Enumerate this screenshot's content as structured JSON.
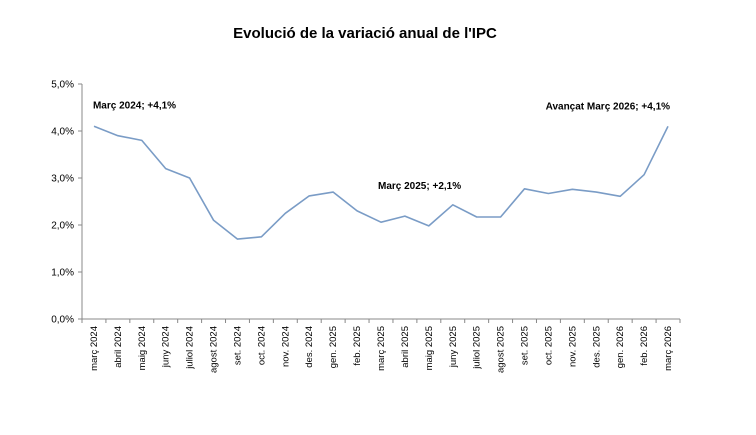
{
  "chart_data": {
    "type": "line",
    "title": "Evolució de la variació anual de l'IPC",
    "xlabel": "",
    "ylabel": "",
    "ylim": [
      0,
      5
    ],
    "yticks": [
      "0,0%",
      "1,0%",
      "2,0%",
      "3,0%",
      "4,0%",
      "5,0%"
    ],
    "grid": false,
    "legend": "none",
    "line_color": "#7a9cc6",
    "categories": [
      "març 2024",
      "abril 2024",
      "maig 2024",
      "juny 2024",
      "juliol 2024",
      "agost 2024",
      "set. 2024",
      "oct. 2024",
      "nov. 2024",
      "des. 2024",
      "gen. 2025",
      "feb. 2025",
      "març 2025",
      "abril 2025",
      "maig 2025",
      "juny 2025",
      "juliol 2025",
      "agost 2025",
      "set. 2025",
      "oct. 2025",
      "nov. 2025",
      "des. 2025",
      "gen. 2026",
      "feb. 2026",
      "març 2026"
    ],
    "series": [
      {
        "values": [
          4.1,
          3.9,
          3.8,
          3.2,
          3.0,
          2.1,
          1.7,
          1.75,
          2.25,
          2.62,
          2.7,
          2.3,
          2.06,
          2.19,
          1.98,
          2.43,
          2.17,
          2.17,
          2.77,
          2.67,
          2.76,
          2.7,
          2.61,
          3.07,
          4.1
        ]
      }
    ],
    "annotations": [
      {
        "label": "Març 2024; +4,1%",
        "category": "març 2024",
        "value": 4.1
      },
      {
        "label": "Març 2025;  +2,1%",
        "category": "març 2025",
        "value": 2.06
      },
      {
        "label": "Avançat Març 2026; +4,1%",
        "category": "març 2026",
        "value": 4.1
      }
    ]
  }
}
